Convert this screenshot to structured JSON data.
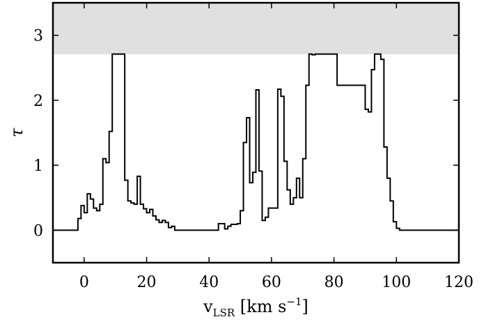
{
  "chart_data": {
    "type": "line",
    "xlabel": "v_LSR [km s^-1]",
    "xlabel_parts": {
      "main": "v",
      "sub": "LSR",
      "unit_open": " [km s",
      "unit_sup": "−1",
      "unit_close": "]"
    },
    "ylabel": "τ",
    "xlim": [
      -10,
      120
    ],
    "ylim": [
      -0.5,
      3.5
    ],
    "xticks": [
      0,
      20,
      40,
      60,
      80,
      100,
      120
    ],
    "yticks": [
      0,
      1,
      2,
      3
    ],
    "xtick_labels": [
      "0",
      "20",
      "40",
      "60",
      "80",
      "100",
      "120"
    ],
    "ytick_labels": [
      "0",
      "1",
      "2",
      "3"
    ],
    "grid": false,
    "step_width": 1,
    "shaded_band": {
      "ymin": 2.71,
      "ymax": 3.5,
      "color": "#e0e0e0"
    },
    "line_color": "#000000",
    "series": [
      {
        "step_x": [
          -10,
          -2,
          -1,
          0,
          1,
          2,
          3,
          4,
          5,
          6,
          7,
          8,
          9,
          10,
          11,
          12,
          13,
          14,
          15,
          16,
          17,
          18,
          19,
          20,
          21,
          22,
          23,
          24,
          25,
          26,
          27,
          28,
          29,
          43,
          44,
          45,
          46,
          47,
          48,
          49,
          50,
          51,
          52,
          53,
          54,
          55,
          56,
          57,
          58,
          59,
          60,
          61,
          62,
          63,
          64,
          65,
          66,
          67,
          68,
          69,
          70,
          71,
          72,
          73,
          74,
          75,
          76,
          77,
          78,
          79,
          80,
          81,
          90,
          91,
          92,
          93,
          94,
          95,
          96,
          97,
          98,
          99,
          100,
          101,
          102,
          103,
          104,
          120
        ],
        "values": [
          0,
          0.18,
          0.38,
          0.27,
          0.56,
          0.48,
          0.34,
          0.3,
          0.4,
          1.1,
          1.04,
          1.52,
          2.71,
          2.71,
          2.71,
          2.71,
          0.77,
          0.45,
          0.42,
          0.4,
          0.83,
          0.4,
          0.33,
          0.27,
          0.32,
          0.22,
          0.16,
          0.12,
          0.15,
          0.12,
          0.04,
          0.06,
          0,
          0.1,
          0.1,
          0.02,
          0.06,
          0.09,
          0.09,
          0.1,
          0.3,
          1.35,
          1.73,
          0.73,
          0.89,
          2.16,
          0.91,
          0.15,
          0.2,
          0.34,
          0.34,
          0.34,
          2.17,
          2.06,
          1.06,
          0.62,
          0.4,
          0.5,
          0.8,
          0.5,
          1.1,
          2.23,
          2.71,
          2.7,
          2.71,
          2.71,
          2.71,
          2.71,
          2.71,
          2.71,
          2.71,
          2.23,
          1.86,
          1.82,
          2.47,
          2.71,
          2.71,
          2.63,
          1.28,
          0.8,
          0.45,
          0.13,
          0.03,
          0,
          0,
          0,
          0
        ]
      }
    ]
  }
}
